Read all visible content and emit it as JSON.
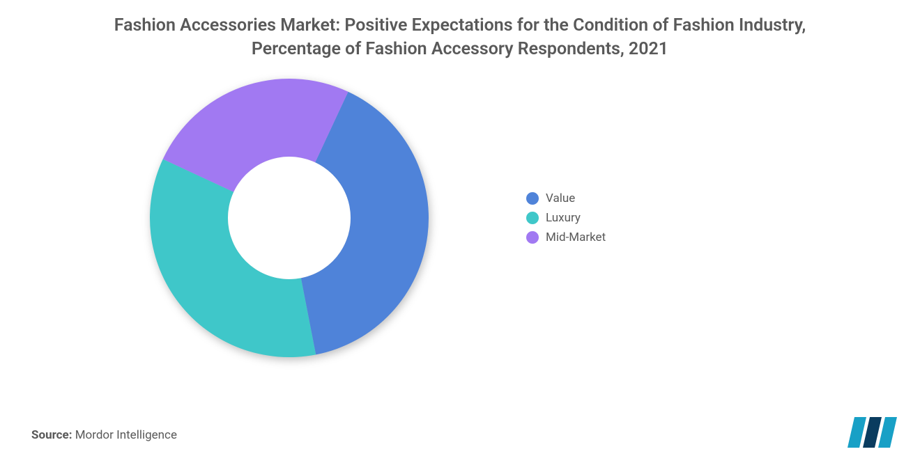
{
  "title": "Fashion Accessories Market: Positive Expectations for the Condition of Fashion Industry, Percentage of Fashion Accessory Respondents, 2021",
  "chart": {
    "type": "donut",
    "inner_radius_ratio": 0.44,
    "background_color": "#ffffff",
    "slices": [
      {
        "label": "Value",
        "value": 40,
        "color": "#4f83d9"
      },
      {
        "label": "Luxury",
        "value": 35,
        "color": "#3fc7c9"
      },
      {
        "label": "Mid-Market",
        "value": 25,
        "color": "#a179f2"
      }
    ],
    "start_angle_deg": -65,
    "direction": "clockwise"
  },
  "legend": {
    "items": [
      {
        "label": "Value",
        "color": "#4f83d9"
      },
      {
        "label": "Luxury",
        "color": "#3fc7c9"
      },
      {
        "label": "Mid-Market",
        "color": "#a179f2"
      }
    ],
    "fontsize": 17,
    "text_color": "#595959"
  },
  "source": {
    "label": "Source:",
    "text": "Mordor Intelligence"
  },
  "logo": {
    "bars": [
      "#18a0c6",
      "#0a3c5f",
      "#18a0c6"
    ],
    "present": true
  },
  "title_style": {
    "fontsize": 25,
    "color": "#595959",
    "weight": 600
  }
}
